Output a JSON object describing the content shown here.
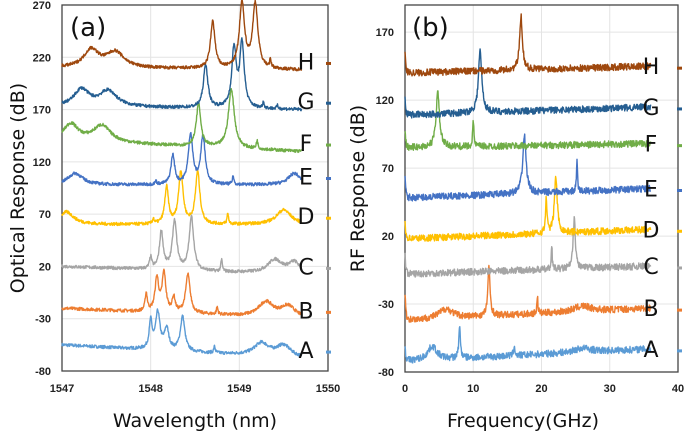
{
  "chart_data": [
    {
      "type": "line",
      "panel_label": "(a)",
      "xlabel": "Wavelength (nm)",
      "ylabel": "Optical Response (dB)",
      "xlim": [
        1547,
        1550
      ],
      "ylim": [
        -80,
        270
      ],
      "xticks": [
        1547,
        1548,
        1549,
        1550
      ],
      "yticks": [
        -80,
        -30,
        20,
        70,
        120,
        170,
        220,
        270
      ],
      "grid": true,
      "x_extent": [
        1547,
        1549.7
      ],
      "series": [
        {
          "name": "A",
          "color": "#5b9bd5",
          "start": -55,
          "end": -68,
          "base": -68,
          "peaks": [
            [
              1548.0,
              -42,
              0.02
            ],
            [
              1548.08,
              -33,
              0.03
            ],
            [
              1548.18,
              -48,
              0.03
            ],
            [
              1548.36,
              -35,
              0.03
            ],
            [
              1548.72,
              -62,
              0.01
            ],
            [
              1549.25,
              -56,
              0.1
            ],
            [
              1549.5,
              -57,
              0.1
            ]
          ]
        },
        {
          "name": "B",
          "color": "#ed7d31",
          "start": -20,
          "end": -30,
          "base": -32,
          "peaks": [
            [
              1547.95,
              -15,
              0.015
            ],
            [
              1548.07,
              0,
              0.025
            ],
            [
              1548.15,
              5,
              0.025
            ],
            [
              1548.26,
              -18,
              0.02
            ],
            [
              1548.42,
              5,
              0.03
            ],
            [
              1548.75,
              -25,
              0.01
            ],
            [
              1549.3,
              -18,
              0.1
            ],
            [
              1549.55,
              -21,
              0.1
            ]
          ]
        },
        {
          "name": "C",
          "color": "#a5a5a5",
          "start": 20,
          "end": 12,
          "base": 9,
          "peaks": [
            [
              1548.0,
              20,
              0.015
            ],
            [
              1548.12,
              45,
              0.025
            ],
            [
              1548.27,
              55,
              0.03
            ],
            [
              1548.46,
              60,
              0.03
            ],
            [
              1548.8,
              20,
              0.01
            ],
            [
              1549.4,
              22,
              0.1
            ],
            [
              1549.62,
              20,
              0.08
            ]
          ]
        },
        {
          "name": "D",
          "color": "#ffc000",
          "start": 60,
          "end": 60,
          "base": 50,
          "peaks": [
            [
              1547.05,
              62,
              0.1
            ],
            [
              1548.03,
              55,
              0.01
            ],
            [
              1548.18,
              85,
              0.025
            ],
            [
              1548.34,
              100,
              0.03
            ],
            [
              1548.53,
              100,
              0.03
            ],
            [
              1548.87,
              60,
              0.01
            ],
            [
              1549.5,
              64,
              0.1
            ]
          ]
        },
        {
          "name": "E",
          "color": "#4472c4",
          "start": 98,
          "end": 98,
          "base": 92,
          "peaks": [
            [
              1547.15,
              103,
              0.1
            ],
            [
              1548.06,
              95,
              0.01
            ],
            [
              1548.25,
              120,
              0.025
            ],
            [
              1548.45,
              140,
              0.03
            ],
            [
              1548.59,
              138,
              0.03
            ],
            [
              1548.93,
              100,
              0.01
            ],
            [
              1549.62,
              103,
              0.08
            ]
          ]
        },
        {
          "name": "F",
          "color": "#70ad47",
          "start": 140,
          "end": 130,
          "base": 129,
          "peaks": [
            [
              1547.1,
              145,
              0.1
            ],
            [
              1547.45,
              145,
              0.12
            ],
            [
              1548.54,
              170,
              0.03
            ],
            [
              1548.91,
              185,
              0.04
            ],
            [
              1549.2,
              137,
              0.01
            ]
          ]
        },
        {
          "name": "G",
          "color": "#255e91",
          "start": 173,
          "end": 170,
          "base": 169,
          "peaks": [
            [
              1547.22,
              185,
              0.1
            ],
            [
              1547.52,
              184,
              0.12
            ],
            [
              1548.62,
              210,
              0.03
            ],
            [
              1548.94,
              225,
              0.03
            ],
            [
              1549.03,
              230,
              0.03
            ],
            [
              1549.27,
              175,
              0.01
            ],
            [
              1549.43,
              172,
              0.01
            ]
          ]
        },
        {
          "name": "H",
          "color": "#9e480e",
          "start": 210,
          "end": 208,
          "base": 208,
          "peaks": [
            [
              1547.33,
              225,
              0.1
            ],
            [
              1547.6,
              223,
              0.12
            ],
            [
              1548.7,
              253,
              0.03
            ],
            [
              1549.03,
              270,
              0.035
            ],
            [
              1549.18,
              270,
              0.035
            ],
            [
              1549.35,
              215,
              0.01
            ]
          ]
        }
      ]
    },
    {
      "type": "line",
      "panel_label": "(b)",
      "xlabel": "Frequency(GHz)",
      "ylabel": "RF Response (dB)",
      "xlim": [
        0,
        40
      ],
      "ylim": [
        -80,
        190
      ],
      "xticks": [
        0,
        10,
        20,
        30,
        40
      ],
      "yticks": [
        -80,
        -30,
        20,
        70,
        120,
        170
      ],
      "grid": true,
      "x_extent": [
        0,
        36
      ],
      "series": [
        {
          "name": "A",
          "color": "#5b9bd5",
          "start": -72,
          "end": -63,
          "base": -70,
          "peaks": [
            [
              0,
              -60,
              0.1
            ],
            [
              4,
              -60,
              0.8
            ],
            [
              8,
              -48,
              0.15
            ],
            [
              16,
              -63,
              0.12
            ],
            [
              26,
              -67,
              1.5
            ]
          ]
        },
        {
          "name": "B",
          "color": "#ed7d31",
          "start": -42,
          "end": -33,
          "base": -40,
          "peaks": [
            [
              0,
              -20,
              0.1
            ],
            [
              6,
              -33,
              1.2
            ],
            [
              12.3,
              -5,
              0.2
            ],
            [
              19.4,
              -28,
              0.1
            ],
            [
              26,
              -36,
              1.5
            ]
          ]
        },
        {
          "name": "C",
          "color": "#a5a5a5",
          "start": -8,
          "end": -2,
          "base": -6,
          "peaks": [
            [
              0,
              8,
              0.1
            ],
            [
              21.5,
              13,
              0.08
            ],
            [
              24.8,
              30,
              0.2
            ]
          ]
        },
        {
          "name": "D",
          "color": "#ffc000",
          "start": 18,
          "end": 25,
          "base": 19,
          "peaks": [
            [
              0,
              32,
              0.1
            ],
            [
              20.7,
              45,
              0.12
            ],
            [
              22.1,
              60,
              0.25
            ]
          ]
        },
        {
          "name": "E",
          "color": "#4472c4",
          "start": 48,
          "end": 55,
          "base": 51,
          "peaks": [
            [
              0,
              65,
              0.1
            ],
            [
              17.5,
              93,
              0.3
            ],
            [
              25.2,
              76,
              0.08
            ]
          ]
        },
        {
          "name": "F",
          "color": "#70ad47",
          "start": 85,
          "end": 88,
          "base": 82,
          "peaks": [
            [
              0,
              95,
              0.1
            ],
            [
              4.8,
              122,
              0.3
            ],
            [
              10,
              100,
              0.12
            ]
          ]
        },
        {
          "name": "G",
          "color": "#255e91",
          "start": 109,
          "end": 115,
          "base": 112,
          "peaks": [
            [
              0,
              125,
              0.1
            ],
            [
              11,
              157,
              0.3
            ]
          ]
        },
        {
          "name": "H",
          "color": "#9e480e",
          "start": 140,
          "end": 145,
          "base": 141,
          "peaks": [
            [
              0,
              155,
              0.1
            ],
            [
              17,
              180,
              0.25
            ]
          ]
        }
      ]
    }
  ]
}
